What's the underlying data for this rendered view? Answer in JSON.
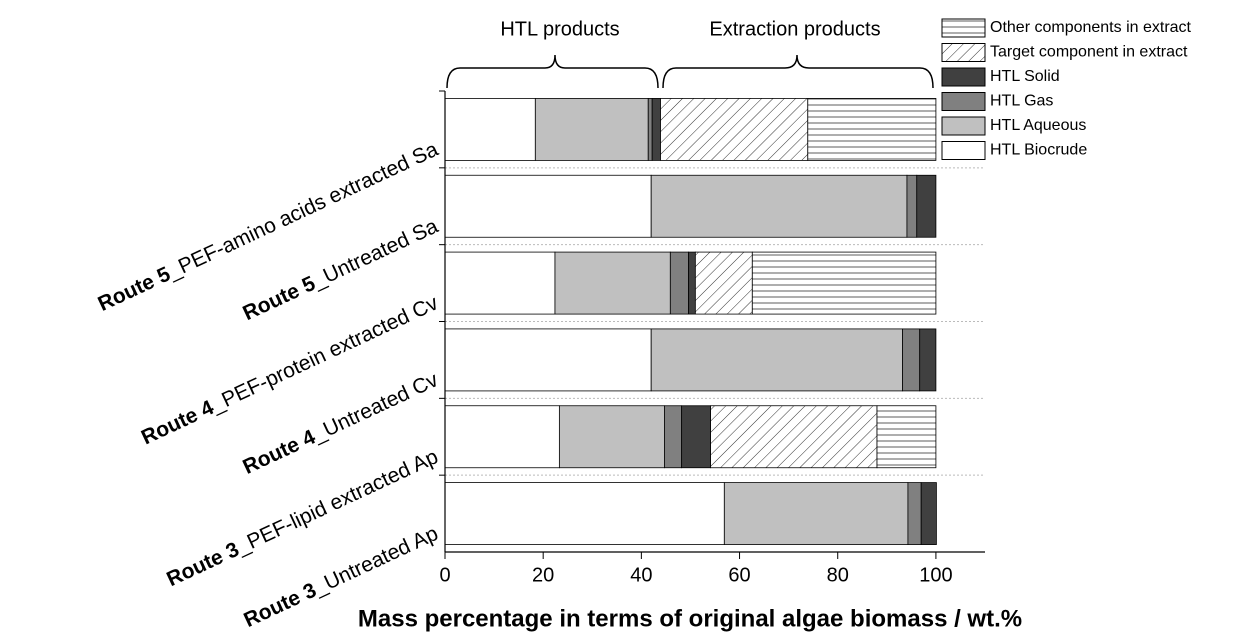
{
  "chart_data": {
    "type": "stacked-barh",
    "xlabel": "Mass percentage in terms of original algae biomass / wt.%",
    "annotations": [
      "HTL products",
      "Extraction products"
    ],
    "categories": [
      {
        "route": "Route 5",
        "label": "_PEF-amino acids extracted Sa"
      },
      {
        "route": "Route 5",
        "label": "_Untreated Sa"
      },
      {
        "route": "Route 4",
        "label": "_PEF-protein extracted Cv"
      },
      {
        "route": "Route 4",
        "label": "_Untreated Cv"
      },
      {
        "route": "Route 3",
        "label": "_PEF-lipid extracted Ap"
      },
      {
        "route": "Route 3",
        "label": "_Untreated Ap"
      }
    ],
    "series": [
      {
        "name": "HTL Biocrude",
        "color": "#ffffff",
        "values": [
          18.4,
          42.0,
          22.4,
          42.0,
          23.3,
          56.9
        ]
      },
      {
        "name": "HTL Aqueous",
        "color": "#c0c0c0",
        "values": [
          23.0,
          52.1,
          23.5,
          51.2,
          21.4,
          37.4
        ]
      },
      {
        "name": "HTL Gas",
        "color": "#808080",
        "values": [
          0.8,
          2.0,
          3.7,
          3.5,
          3.5,
          2.7
        ]
      },
      {
        "name": "HTL Solid",
        "color": "#404040",
        "values": [
          1.7,
          3.9,
          1.4,
          3.3,
          5.9,
          3.1
        ]
      },
      {
        "name": "Target component in extract",
        "color": "#ffffff",
        "pattern": "diagonal",
        "values": [
          30.0,
          0,
          11.6,
          0,
          33.9,
          0
        ]
      },
      {
        "name": "Other components in extract",
        "color": "#ffffff",
        "pattern": "horizontal",
        "values": [
          26.1,
          0,
          37.4,
          0,
          12.0,
          0
        ]
      }
    ],
    "xlim": [
      0,
      110
    ],
    "xticks": [
      0,
      20,
      40,
      60,
      80,
      100
    ]
  }
}
